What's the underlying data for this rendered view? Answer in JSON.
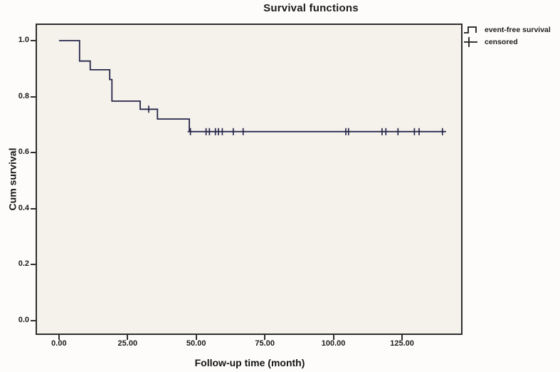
{
  "title": "Survival functions",
  "axes": {
    "x_label": "Follow-up time (month)",
    "y_label": "Cum survival"
  },
  "legend": {
    "items": [
      {
        "symbol": "step-line",
        "label": "event-free survival"
      },
      {
        "symbol": "plus",
        "label": "censored"
      }
    ]
  },
  "chart_data": {
    "type": "line",
    "subtype": "kaplan-meier-step",
    "title": "Survival functions",
    "xlabel": "Follow-up time (month)",
    "ylabel": "Cum survival",
    "grid": false,
    "legend_position": "top-right-outside",
    "x_ticks": [
      {
        "value": 0,
        "label": "0.00"
      },
      {
        "value": 25,
        "label": "25.00"
      },
      {
        "value": 50,
        "label": "50.00"
      },
      {
        "value": 75,
        "label": "75.00"
      },
      {
        "value": 100,
        "label": "100.00"
      },
      {
        "value": 125,
        "label": "125.00"
      }
    ],
    "y_ticks": [
      {
        "value": 0.0,
        "label": "0.0"
      },
      {
        "value": 0.2,
        "label": "0.2"
      },
      {
        "value": 0.4,
        "label": "0.4"
      },
      {
        "value": 0.6,
        "label": "0.6"
      },
      {
        "value": 0.8,
        "label": "0.8"
      },
      {
        "value": 1.0,
        "label": "1.0"
      }
    ],
    "x_window": [
      -8,
      146.5
    ],
    "y_window": [
      -0.046,
      1.056
    ],
    "series": [
      {
        "name": "event-free survival",
        "steps": [
          [
            0,
            1.0
          ],
          [
            7.5,
            0.927
          ],
          [
            11.4,
            0.896
          ],
          [
            18.5,
            0.861
          ],
          [
            19.3,
            0.784
          ],
          [
            29.6,
            0.755
          ],
          [
            35.9,
            0.72
          ],
          [
            47.5,
            0.675
          ]
        ],
        "end_time": 141,
        "censored": [
          [
            32.7,
            0.755
          ],
          [
            47.9,
            0.675
          ],
          [
            53.6,
            0.675
          ],
          [
            54.8,
            0.675
          ],
          [
            57.0,
            0.675
          ],
          [
            58.1,
            0.675
          ],
          [
            59.5,
            0.675
          ],
          [
            63.5,
            0.675
          ],
          [
            67.1,
            0.675
          ],
          [
            104.5,
            0.675
          ],
          [
            105.5,
            0.675
          ],
          [
            117.7,
            0.675
          ],
          [
            119.1,
            0.675
          ],
          [
            123.5,
            0.675
          ],
          [
            129.5,
            0.675
          ],
          [
            131.2,
            0.675
          ],
          [
            139.7,
            0.675
          ]
        ]
      }
    ],
    "colors": {
      "line": "#26264a",
      "plot_background": "#f5f2ec",
      "frame": "#2e2e2e",
      "text": "#1b1b1b"
    }
  }
}
